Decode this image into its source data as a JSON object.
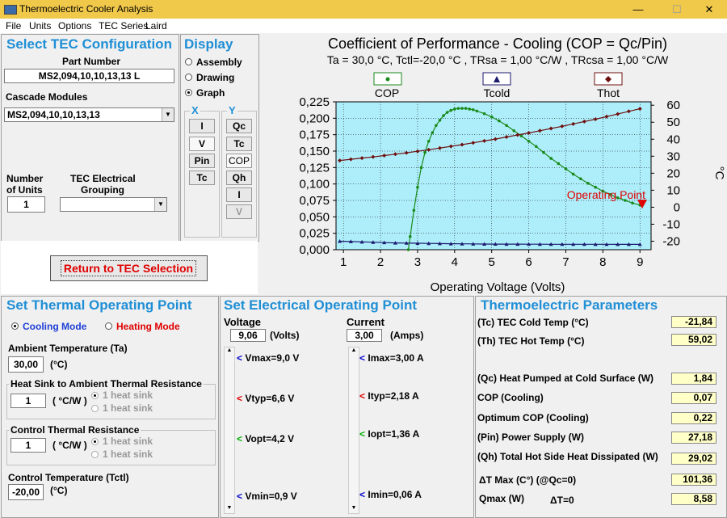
{
  "window": {
    "title": "Thermoelectric Cooler Analysis",
    "min": "—",
    "max": "☐",
    "close": "✕"
  },
  "menu": [
    "File",
    "Units",
    "Options",
    "TEC Series",
    "Laird"
  ],
  "config": {
    "title": "Select TEC Configuration",
    "part_number_label": "Part Number",
    "part_number": "MS2,094,10,10,13,13 L",
    "cascade_label": "Cascade Modules",
    "cascade_value": "MS2,094,10,10,13,13",
    "units_label_1": "Number",
    "units_label_2": "of Units",
    "units_value": "1",
    "grouping_label_1": "TEC Electrical",
    "grouping_label_2": "Grouping",
    "grouping_value": ""
  },
  "display": {
    "title": "Display",
    "options": [
      "Assembly",
      "Drawing",
      "Graph"
    ],
    "selected": "Graph",
    "x_label": "X",
    "y_label": "Y",
    "x_buttons": [
      "I",
      "V",
      "Pin",
      "Tc"
    ],
    "y_buttons": [
      "Qc",
      "Tc",
      "COP",
      "Qh",
      "I",
      "V"
    ]
  },
  "return_button": "Return to TEC Selection",
  "thermal": {
    "title": "Set Thermal Operating Point",
    "cooling_mode": "Cooling Mode",
    "heating_mode": "Heating Mode",
    "ambient_label": "Ambient Temperature (Ta)",
    "ambient_value": "30,00",
    "ambient_unit": "(°C)",
    "heatsink_label": "Heat Sink to Ambient Thermal Resistance",
    "heatsink_value": "1",
    "heatsink_unit": "( °C/W )",
    "heatsink_opt1": "1 heat sink",
    "heatsink_opt2": "1 heat sink",
    "control_res_label": "Control Thermal Resistance",
    "control_res_value": "1",
    "control_res_unit": "( °C/W )",
    "control_opt1": "1 heat sink",
    "control_opt2": "1 heat sink",
    "control_temp_label": "Control Temperature (Tctl)",
    "control_temp_value": "-20,00",
    "control_temp_unit": "(°C)"
  },
  "electrical": {
    "title": "Set Electrical Operating Point",
    "voltage_label": "Voltage",
    "voltage_value": "9,06",
    "voltage_unit": "(Volts)",
    "current_label": "Current",
    "current_value": "3,00",
    "current_unit": "(Amps)",
    "v_marks": [
      "Vmax=9,0 V",
      "Vtyp=6,6 V",
      "Vopt=4,2 V",
      "Vmin=0,9 V"
    ],
    "i_marks": [
      "Imax=3,00 A",
      "Ityp=2,18 A",
      "Iopt=1,36 A",
      "Imin=0,06 A"
    ],
    "mark_colors": [
      "#0000cc",
      "#e00000",
      "#00b000",
      "#0000cc"
    ]
  },
  "params": {
    "title": "Thermoelectric Parameters",
    "rows": [
      {
        "label": "(Tc) TEC Cold Temp (°C)",
        "value": "-21,84"
      },
      {
        "label": "(Th) TEC Hot Temp (°C)",
        "value": "59,02"
      },
      {
        "label": "(Qc) Heat Pumped at Cold Surface (W)",
        "value": "1,84"
      },
      {
        "label": "COP (Cooling)",
        "value": "0,07"
      },
      {
        "label": "Optimum COP (Cooling)",
        "value": "0,22"
      },
      {
        "label": "(Pin) Power Supply (W)",
        "value": "27,18"
      },
      {
        "label": "(Qh) Total Hot Side Heat Dissipated (W)",
        "value": "29,02"
      },
      {
        "label": "ΔT Max (C°) (@Qc=0)",
        "value": "101,36"
      },
      {
        "label": "Qmax (W)",
        "value": "8,58"
      }
    ],
    "dt_label": "ΔT=0"
  },
  "chart_data": {
    "type": "line",
    "title": "Coefficient of Performance - Cooling (COP = Qc/Pin)",
    "subtitle": "Ta = 30,0 °C, Tctl=-20,0 °C , TRsa = 1,00 °C/W , TRcsa = 1,00 °C/W",
    "xlabel": "Operating Voltage (Volts)",
    "ylabel_right": "°C",
    "xlim": [
      0.8,
      9.3
    ],
    "ylim": [
      0,
      0.225
    ],
    "ylim_right": [
      -25,
      62
    ],
    "x_ticks": [
      "1",
      "2",
      "3",
      "4",
      "5",
      "6",
      "7",
      "8",
      "9"
    ],
    "y_ticks": [
      "0,000",
      "0,025",
      "0,050",
      "0,075",
      "0,100",
      "0,125",
      "0,150",
      "0,175",
      "0,200",
      "0,225"
    ],
    "y2_ticks": [
      "-20",
      "-10",
      "0",
      "10",
      "20",
      "30",
      "40",
      "50",
      "60"
    ],
    "legend": [
      "COP",
      "Tcold",
      "Thot"
    ],
    "series_colors": [
      "#1a8a1a",
      "#1a1a6e",
      "#6e1010"
    ],
    "plot_bg": "#aeeefa",
    "annotation": "Operating Point",
    "operating_point": {
      "x": 9.06,
      "cop": 0.07
    },
    "series": [
      {
        "name": "COP",
        "axis": "left",
        "x": [
          2.75,
          2.8,
          2.9,
          3.0,
          3.1,
          3.2,
          3.3,
          3.4,
          3.5,
          3.6,
          3.7,
          3.8,
          3.9,
          4.0,
          4.1,
          4.2,
          4.3,
          4.4,
          4.5,
          4.6,
          4.8,
          5.0,
          5.2,
          5.4,
          5.6,
          5.8,
          6.0,
          6.2,
          6.4,
          6.6,
          6.8,
          7.0,
          7.2,
          7.4,
          7.6,
          7.8,
          8.0,
          8.2,
          8.4,
          8.6,
          8.8,
          9.0
        ],
        "values": [
          0.0,
          0.02,
          0.06,
          0.095,
          0.125,
          0.148,
          0.165,
          0.178,
          0.189,
          0.197,
          0.204,
          0.209,
          0.212,
          0.214,
          0.215,
          0.215,
          0.215,
          0.214,
          0.213,
          0.211,
          0.207,
          0.202,
          0.196,
          0.189,
          0.181,
          0.173,
          0.165,
          0.157,
          0.148,
          0.139,
          0.131,
          0.123,
          0.115,
          0.108,
          0.101,
          0.095,
          0.089,
          0.084,
          0.079,
          0.075,
          0.071,
          0.068
        ]
      },
      {
        "name": "Tcold",
        "axis": "right",
        "x": [
          0.9,
          1.2,
          1.5,
          1.8,
          2.1,
          2.4,
          2.7,
          3.0,
          3.3,
          3.6,
          3.9,
          4.2,
          4.5,
          4.8,
          5.1,
          5.4,
          5.7,
          6.0,
          6.3,
          6.6,
          6.9,
          7.2,
          7.5,
          7.8,
          8.1,
          8.4,
          8.7,
          9.0
        ],
        "values": [
          -20.0,
          -20.2,
          -20.4,
          -20.6,
          -20.8,
          -21.0,
          -21.1,
          -21.2,
          -21.3,
          -21.4,
          -21.5,
          -21.55,
          -21.6,
          -21.65,
          -21.7,
          -21.72,
          -21.74,
          -21.76,
          -21.78,
          -21.8,
          -21.8,
          -21.82,
          -21.82,
          -21.83,
          -21.83,
          -21.84,
          -21.84,
          -21.84
        ]
      },
      {
        "name": "Thot",
        "axis": "right",
        "x": [
          0.9,
          1.2,
          1.5,
          1.8,
          2.1,
          2.4,
          2.7,
          3.0,
          3.3,
          3.6,
          3.9,
          4.2,
          4.5,
          4.8,
          5.1,
          5.4,
          5.7,
          6.0,
          6.3,
          6.6,
          6.9,
          7.2,
          7.5,
          7.8,
          8.1,
          8.4,
          8.7,
          9.0
        ],
        "values": [
          27.5,
          28.2,
          28.9,
          29.6,
          30.4,
          31.2,
          32.0,
          32.9,
          33.8,
          34.8,
          35.8,
          36.8,
          37.9,
          39.0,
          40.1,
          41.3,
          42.5,
          43.7,
          45.0,
          46.3,
          47.6,
          49.0,
          50.4,
          51.8,
          53.3,
          54.8,
          56.4,
          57.9
        ]
      }
    ]
  }
}
